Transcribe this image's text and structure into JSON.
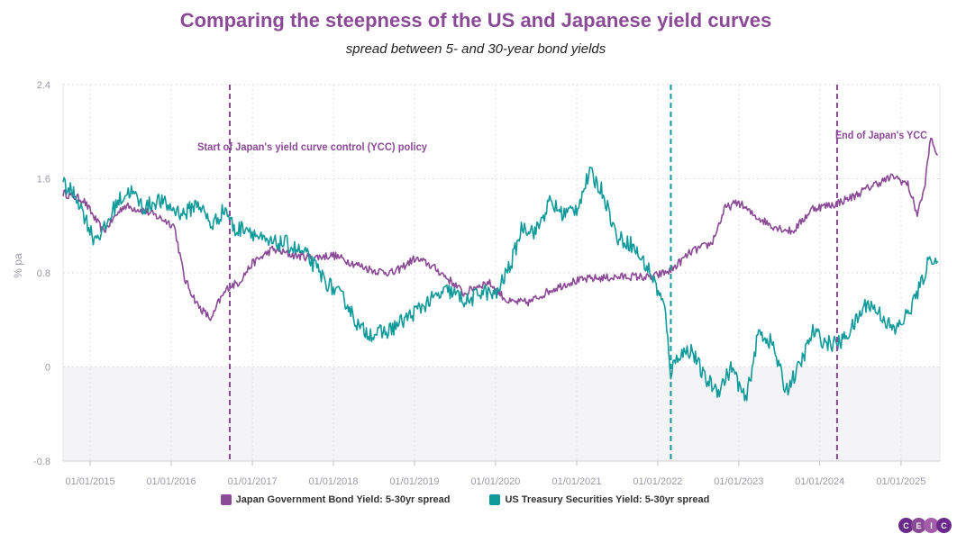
{
  "chart_data": {
    "type": "line",
    "title": "Comparing the steepness of the US and Japanese yield curves",
    "subtitle": "spread between 5- and 30-year bond yields",
    "ylabel": "% pa",
    "xlabel": "",
    "ylim": [
      -0.8,
      2.4
    ],
    "yticks": [
      "2.4",
      "1.6",
      "0.8",
      "0",
      "-0.8"
    ],
    "xticks": [
      "01/01/2015",
      "01/01/2016",
      "01/01/2017",
      "01/01/2018",
      "01/01/2019",
      "01/01/2020",
      "01/01/2021",
      "01/01/2022",
      "01/01/2023",
      "01/01/2024",
      "01/01/2025"
    ],
    "grid": true,
    "legend_position": "bottom",
    "series": [
      {
        "name": "Japan Government Bond Yield: 5-30yr spread",
        "color": "#8b4a96",
        "x": [
          "2014-09-01",
          "2014-12-01",
          "2015-03-01",
          "2015-06-01",
          "2015-09-01",
          "2015-12-01",
          "2016-01-15",
          "2016-03-01",
          "2016-05-01",
          "2016-07-01",
          "2016-08-01",
          "2016-09-15",
          "2016-11-01",
          "2017-01-01",
          "2017-04-01",
          "2017-07-01",
          "2017-10-01",
          "2018-01-01",
          "2018-04-01",
          "2018-07-01",
          "2018-10-01",
          "2019-01-01",
          "2019-03-01",
          "2019-05-01",
          "2019-07-01",
          "2019-08-15",
          "2019-10-01",
          "2019-12-01",
          "2020-03-01",
          "2020-06-01",
          "2020-09-01",
          "2020-12-01",
          "2021-03-01",
          "2021-06-01",
          "2021-09-01",
          "2021-12-01",
          "2022-03-01",
          "2022-06-01",
          "2022-09-01",
          "2022-11-01",
          "2023-01-01",
          "2023-03-01",
          "2023-06-01",
          "2023-09-01",
          "2023-12-01",
          "2024-03-01",
          "2024-06-01",
          "2024-09-01",
          "2024-12-01",
          "2025-02-01",
          "2025-03-15",
          "2025-04-15",
          "2025-05-15",
          "2025-06-15"
        ],
        "y": [
          1.48,
          1.42,
          1.15,
          1.37,
          1.33,
          1.25,
          1.2,
          0.75,
          0.52,
          0.4,
          0.55,
          0.68,
          0.72,
          0.88,
          1.0,
          0.95,
          0.93,
          0.95,
          0.88,
          0.82,
          0.8,
          0.92,
          0.88,
          0.8,
          0.7,
          0.62,
          0.68,
          0.72,
          0.55,
          0.55,
          0.65,
          0.72,
          0.75,
          0.76,
          0.77,
          0.76,
          0.82,
          0.98,
          1.05,
          1.35,
          1.4,
          1.3,
          1.2,
          1.15,
          1.35,
          1.38,
          1.45,
          1.55,
          1.62,
          1.55,
          1.3,
          1.5,
          1.95,
          1.8
        ]
      },
      {
        "name": "US Treasury Securities Yield: 5-30yr spread",
        "color": "#119a9a",
        "x": [
          "2014-09-01",
          "2014-11-01",
          "2015-01-15",
          "2015-03-01",
          "2015-05-01",
          "2015-07-01",
          "2015-09-01",
          "2015-11-01",
          "2016-01-01",
          "2016-03-01",
          "2016-05-01",
          "2016-07-01",
          "2016-09-01",
          "2016-10-15",
          "2016-12-01",
          "2017-03-01",
          "2017-06-01",
          "2017-09-01",
          "2017-12-01",
          "2018-03-01",
          "2018-05-01",
          "2018-07-01",
          "2018-09-01",
          "2018-12-01",
          "2019-03-01",
          "2019-06-01",
          "2019-09-01",
          "2019-11-01",
          "2020-01-01",
          "2020-03-15",
          "2020-05-01",
          "2020-07-01",
          "2020-09-01",
          "2020-11-01",
          "2021-01-01",
          "2021-03-01",
          "2021-05-01",
          "2021-07-01",
          "2021-09-01",
          "2021-12-01",
          "2022-02-01",
          "2022-03-01",
          "2022-04-01",
          "2022-06-01",
          "2022-08-01",
          "2022-10-01",
          "2022-12-01",
          "2023-02-01",
          "2023-04-01",
          "2023-06-01",
          "2023-08-01",
          "2023-10-01",
          "2023-12-01",
          "2024-02-01",
          "2024-04-01",
          "2024-06-01",
          "2024-08-01",
          "2024-10-01",
          "2024-12-01",
          "2025-02-01",
          "2025-04-01",
          "2025-05-15",
          "2025-06-15"
        ],
        "y": [
          1.55,
          1.45,
          1.1,
          1.15,
          1.4,
          1.5,
          1.35,
          1.42,
          1.35,
          1.3,
          1.4,
          1.2,
          1.35,
          1.15,
          1.2,
          1.05,
          1.05,
          0.95,
          0.72,
          0.55,
          0.32,
          0.28,
          0.3,
          0.42,
          0.55,
          0.65,
          0.55,
          0.65,
          0.6,
          0.9,
          1.2,
          1.15,
          1.4,
          1.3,
          1.35,
          1.65,
          1.48,
          1.1,
          1.05,
          0.8,
          0.5,
          -0.05,
          0.1,
          0.15,
          -0.1,
          -0.2,
          0.0,
          -0.3,
          0.3,
          0.2,
          -0.2,
          0.0,
          0.3,
          0.2,
          0.2,
          0.35,
          0.55,
          0.45,
          0.3,
          0.45,
          0.7,
          0.95,
          0.9
        ]
      }
    ],
    "annotations": [
      {
        "date": "2016-09-21",
        "text": "Start of Japan's yield curve control (YCC) policy",
        "color": "#8b4a96"
      },
      {
        "date": "2022-03-01",
        "text": "",
        "color": "#119a9a"
      },
      {
        "date": "2024-03-19",
        "text": "End of Japan's YCC",
        "color": "#8b4a96"
      }
    ]
  },
  "logo": {
    "letters": [
      "C",
      "E",
      "I",
      "C"
    ],
    "colors": [
      "#6b2a8a",
      "#8b4a96",
      "#a45cab",
      "#6b2a8a"
    ]
  }
}
